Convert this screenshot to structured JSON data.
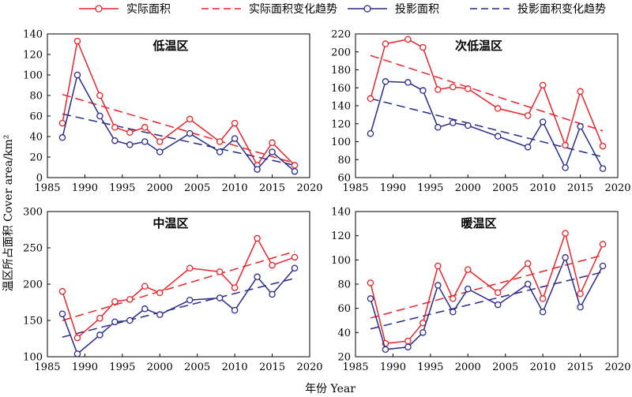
{
  "figure": {
    "ylabel": "温区所占面积 Cover area/km²",
    "xlabel": "年份 Year"
  },
  "legend": {
    "placement": "top",
    "entries": [
      {
        "label": "实际面积",
        "color": "#e8242a",
        "style": "line-marker"
      },
      {
        "label": "实际面积变化趋势",
        "color": "#e8242a",
        "style": "dashed"
      },
      {
        "label": "投影面积",
        "color": "#2a2a8c",
        "style": "line-marker"
      },
      {
        "label": "投影面积变化趋势",
        "color": "#2a2a8c",
        "style": "dashed"
      }
    ]
  },
  "chart_data": [
    {
      "type": "line",
      "title": "低温区",
      "xlim": [
        1985,
        2020
      ],
      "ylim": [
        0,
        140
      ],
      "xticks": [
        1985,
        1990,
        1995,
        2000,
        2005,
        2010,
        2015,
        2020
      ],
      "yticks": [
        0,
        20,
        40,
        60,
        80,
        100,
        120,
        140
      ],
      "x": [
        1987,
        1989,
        1992,
        1994,
        1996,
        1998,
        2000,
        2004,
        2008,
        2010,
        2013,
        2015,
        2018
      ],
      "series": [
        {
          "name": "实际面积",
          "color": "#e8242a",
          "values": [
            53,
            133,
            80,
            49,
            44,
            49,
            35,
            57,
            35,
            53,
            12,
            34,
            12
          ]
        },
        {
          "name": "投影面积",
          "color": "#2a2a8c",
          "values": [
            39,
            100,
            60,
            36,
            32,
            35,
            25,
            43,
            25,
            38,
            8,
            25,
            6
          ]
        }
      ],
      "trends": [
        {
          "name": "实际面积变化趋势",
          "color": "#e8242a",
          "x": [
            1987,
            2018
          ],
          "y": [
            81,
            14
          ]
        },
        {
          "name": "投影面积变化趋势",
          "color": "#2a2a8c",
          "x": [
            1987,
            2018
          ],
          "y": [
            62,
            12
          ]
        }
      ]
    },
    {
      "type": "line",
      "title": "次低温区",
      "xlim": [
        1985,
        2020
      ],
      "ylim": [
        60,
        220
      ],
      "xticks": [
        1985,
        1990,
        1995,
        2000,
        2005,
        2010,
        2015,
        2020
      ],
      "yticks": [
        60,
        80,
        100,
        120,
        140,
        160,
        180,
        200,
        220
      ],
      "x": [
        1987,
        1989,
        1992,
        1994,
        1996,
        1998,
        2000,
        2004,
        2008,
        2010,
        2013,
        2015,
        2018
      ],
      "series": [
        {
          "name": "实际面积",
          "color": "#e8242a",
          "values": [
            148,
            209,
            214,
            205,
            158,
            161,
            159,
            137,
            129,
            163,
            96,
            156,
            95
          ]
        },
        {
          "name": "投影面积",
          "color": "#2a2a8c",
          "values": [
            109,
            167,
            166,
            157,
            116,
            121,
            118,
            106,
            94,
            122,
            71,
            117,
            70
          ]
        }
      ],
      "trends": [
        {
          "name": "实际面积变化趋势",
          "color": "#e8242a",
          "x": [
            1987,
            2018
          ],
          "y": [
            196,
            112
          ]
        },
        {
          "name": "投影面积变化趋势",
          "color": "#2a2a8c",
          "x": [
            1987,
            2018
          ],
          "y": [
            148,
            83
          ]
        }
      ]
    },
    {
      "type": "line",
      "title": "中温区",
      "xlim": [
        1985,
        2020
      ],
      "ylim": [
        100,
        300
      ],
      "xticks": [
        1985,
        1990,
        1995,
        2000,
        2005,
        2010,
        2015,
        2020
      ],
      "yticks": [
        100,
        150,
        200,
        250,
        300
      ],
      "x": [
        1987,
        1989,
        1992,
        1994,
        1996,
        1998,
        2000,
        2004,
        2008,
        2010,
        2013,
        2015,
        2018
      ],
      "series": [
        {
          "name": "实际面积",
          "color": "#e8242a",
          "values": [
            190,
            126,
            153,
            176,
            179,
            197,
            188,
            222,
            217,
            195,
            263,
            226,
            237
          ]
        },
        {
          "name": "投影面积",
          "color": "#2a2a8c",
          "values": [
            159,
            104,
            130,
            148,
            150,
            166,
            158,
            178,
            181,
            164,
            210,
            186,
            222
          ]
        }
      ],
      "trends": [
        {
          "name": "实际面积变化趋势",
          "color": "#e8242a",
          "x": [
            1987,
            2018
          ],
          "y": [
            150,
            245
          ]
        },
        {
          "name": "投影面积变化趋势",
          "color": "#2a2a8c",
          "x": [
            1987,
            2018
          ],
          "y": [
            127,
            208
          ]
        }
      ]
    },
    {
      "type": "line",
      "title": "暖温区",
      "xlim": [
        1985,
        2020
      ],
      "ylim": [
        20,
        140
      ],
      "xticks": [
        1985,
        1990,
        1995,
        2000,
        2005,
        2010,
        2015,
        2020
      ],
      "yticks": [
        20,
        40,
        60,
        80,
        100,
        120,
        140
      ],
      "x": [
        1987,
        1989,
        1992,
        1994,
        1996,
        1998,
        2000,
        2004,
        2008,
        2010,
        2013,
        2015,
        2018
      ],
      "series": [
        {
          "name": "实际面积",
          "color": "#e8242a",
          "values": [
            81,
            31,
            33,
            48,
            95,
            68,
            92,
            73,
            97,
            68,
            122,
            72,
            113
          ]
        },
        {
          "name": "投影面积",
          "color": "#2a2a8c",
          "values": [
            68,
            26,
            28,
            40,
            79,
            57,
            76,
            63,
            80,
            57,
            102,
            61,
            95
          ]
        }
      ],
      "trends": [
        {
          "name": "实际面积变化趋势",
          "color": "#e8242a",
          "x": [
            1987,
            2018
          ],
          "y": [
            52,
            104
          ]
        },
        {
          "name": "投影面积变化趋势",
          "color": "#2a2a8c",
          "x": [
            1987,
            2018
          ],
          "y": [
            43,
            90
          ]
        }
      ]
    }
  ]
}
